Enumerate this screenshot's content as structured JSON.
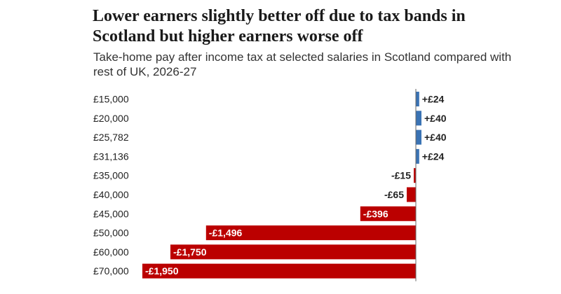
{
  "title": "Lower earners slightly better off due to tax bands in Scotland but higher earners worse off",
  "subtitle": "Take-home pay after income tax at selected salaries in Scotland compared with rest of UK, 2026-27",
  "colors": {
    "positive": "#3a73b4",
    "negative": "#bb0000",
    "axis": "#666666"
  },
  "chart_data": {
    "type": "bar",
    "orientation": "horizontal",
    "categories": [
      "£15,000",
      "£20,000",
      "£25,782",
      "£31,136",
      "£35,000",
      "£40,000",
      "£45,000",
      "£50,000",
      "£60,000",
      "£70,000"
    ],
    "values": [
      24,
      40,
      40,
      24,
      -15,
      -65,
      -396,
      -1496,
      -1750,
      -1950
    ],
    "data_labels": [
      "+£24",
      "+£40",
      "+£40",
      "+£24",
      "-£15",
      "-£65",
      "-£396",
      "-£1,496",
      "-£1,750",
      "-£1,950"
    ],
    "xlabel": "",
    "ylabel": "",
    "xlim": [
      -1950,
      40
    ]
  }
}
